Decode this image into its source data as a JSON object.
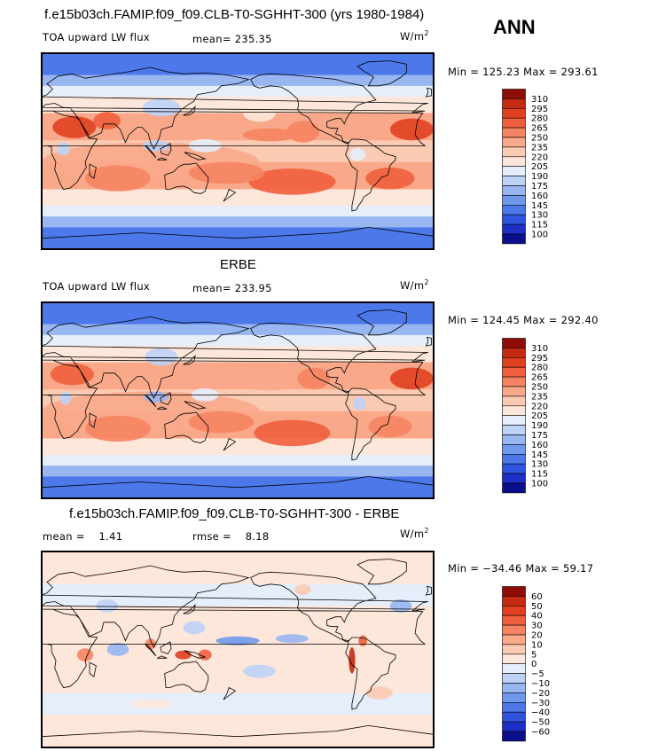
{
  "figure": {
    "ann_label": "ANN",
    "colors": {
      "abs": [
        "#0b0f8c",
        "#1d2fc7",
        "#2f55e0",
        "#4c78ea",
        "#7099ec",
        "#98b6f0",
        "#bed2f6",
        "#e6eefb",
        "#fde7da",
        "#fbcab2",
        "#f9a98a",
        "#f68462",
        "#ef5f3d",
        "#e0401f",
        "#c42a12",
        "#8f0d07"
      ],
      "diff": [
        "#0b0f8c",
        "#1d2fc7",
        "#2f55e0",
        "#4c78ea",
        "#7099ec",
        "#98b6f0",
        "#bed2f6",
        "#e6eefb",
        "#fde7da",
        "#fbcab2",
        "#f9a98a",
        "#f68462",
        "#ef5f3d",
        "#e0401f",
        "#c42a12",
        "#8f0d07"
      ]
    }
  },
  "chart_data": [
    {
      "type": "heatmap",
      "title": "f.e15b03ch.FAMIP.f09_f09.CLB-T0-SGHHT-300 (yrs 1980-1984)",
      "left_label": "TOA upward LW flux",
      "stat1_label": "mean=",
      "stat1_value": "235.35",
      "units": "W/m",
      "units_sup": "2",
      "minmax_text": "Min = 125.23 Max = 293.61",
      "min": 125.23,
      "max": 293.61,
      "levels": [
        "310",
        "295",
        "280",
        "265",
        "250",
        "235",
        "220",
        "205",
        "190",
        "175",
        "160",
        "145",
        "130",
        "115",
        "100"
      ]
    },
    {
      "type": "heatmap",
      "title": "ERBE",
      "left_label": "TOA upward LW flux",
      "stat1_label": "mean=",
      "stat1_value": "233.95",
      "units": "W/m",
      "units_sup": "2",
      "minmax_text": "Min = 124.45 Max = 292.40",
      "min": 124.45,
      "max": 292.4,
      "levels": [
        "310",
        "295",
        "280",
        "265",
        "250",
        "235",
        "220",
        "205",
        "190",
        "175",
        "160",
        "145",
        "130",
        "115",
        "100"
      ]
    },
    {
      "type": "heatmap",
      "title": "f.e15b03ch.FAMIP.f09_f09.CLB-T0-SGHHT-300 - ERBE",
      "left_label": "mean =",
      "left_value": "1.41",
      "stat1_label": "rmse =",
      "stat1_value": "8.18",
      "units": "W/m",
      "units_sup": "2",
      "minmax_text": "Min = −34.46 Max =  59.17",
      "min": -34.46,
      "max": 59.17,
      "levels": [
        "60",
        "50",
        "40",
        "30",
        "20",
        "10",
        "5",
        "0",
        "−5",
        "−10",
        "−20",
        "−30",
        "−40",
        "−50",
        "−60"
      ]
    }
  ]
}
